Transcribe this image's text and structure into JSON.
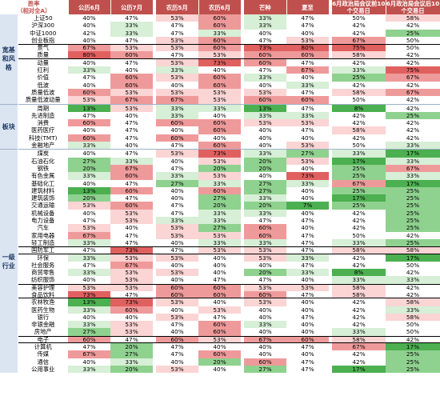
{
  "header": {
    "corner": "胜率\n（相对全A）",
    "columns": [
      "公历6月",
      "公历7月",
      "农历5月",
      "农历6月",
      "芒种",
      "夏至",
      "6月政治局会议前10个交易日",
      "6月政治局会议后10个交易日"
    ]
  },
  "colors": {
    "header_bg": "#c0504d",
    "group_bg": "#dbe5f1",
    "strong_red": "#e06060",
    "red": "#ef9a9a",
    "light_red": "#fbd4d4",
    "neutral": "#ffffff",
    "light_green": "#d6efd6",
    "green": "#8fd18f",
    "strong_green": "#4caf50"
  },
  "groups": [
    {
      "label": "宽基和风格",
      "rows": [
        {
          "name": "上证50",
          "values": [
            "40%",
            "47%",
            "53%",
            "60%",
            "33%",
            "47%",
            "50%",
            "58%"
          ]
        },
        {
          "name": "沪深300",
          "values": [
            "40%",
            "33%",
            "47%",
            "60%",
            "33%",
            "47%",
            "42%",
            "42%"
          ]
        },
        {
          "name": "中证1000",
          "values": [
            "42%",
            "33%",
            "47%",
            "33%",
            "40%",
            "40%",
            "42%",
            "25%"
          ]
        },
        {
          "name": "创业板指",
          "values": [
            "40%",
            "47%",
            "53%",
            "60%",
            "47%",
            "53%",
            "67%",
            "50%"
          ]
        },
        {
          "name": "景气",
          "values": [
            "67%",
            "53%",
            "53%",
            "60%",
            "73%",
            "80%",
            "75%",
            "50%"
          ],
          "box": "top"
        },
        {
          "name": "质量",
          "values": [
            "80%",
            "60%",
            "47%",
            "53%",
            "60%",
            "60%",
            "58%",
            "42%"
          ],
          "box": "bot"
        },
        {
          "name": "动量",
          "values": [
            "40%",
            "47%",
            "53%",
            "73%",
            "60%",
            "47%",
            "42%",
            "42%"
          ]
        },
        {
          "name": "红利",
          "values": [
            "33%",
            "40%",
            "33%",
            "40%",
            "47%",
            "67%",
            "33%",
            "75%"
          ]
        },
        {
          "name": "价值",
          "values": [
            "47%",
            "60%",
            "53%",
            "60%",
            "33%",
            "40%",
            "25%",
            "67%"
          ]
        },
        {
          "name": "低波",
          "values": [
            "40%",
            "60%",
            "40%",
            "60%",
            "40%",
            "33%",
            "42%",
            "42%"
          ]
        },
        {
          "name": "质量低波",
          "values": [
            "60%",
            "53%",
            "53%",
            "53%",
            "53%",
            "47%",
            "58%",
            "67%"
          ]
        },
        {
          "name": "质量低波动量",
          "values": [
            "53%",
            "67%",
            "67%",
            "53%",
            "60%",
            "60%",
            "50%",
            "42%"
          ]
        }
      ]
    },
    {
      "label": "板块",
      "rows": [
        {
          "name": "周期",
          "values": [
            "13%",
            "53%",
            "33%",
            "33%",
            "13%",
            "47%",
            "8%",
            "42%"
          ]
        },
        {
          "name": "先进制造",
          "values": [
            "47%",
            "40%",
            "33%",
            "40%",
            "33%",
            "33%",
            "42%",
            "25%"
          ]
        },
        {
          "name": "消费",
          "values": [
            "60%",
            "47%",
            "60%",
            "60%",
            "53%",
            "53%",
            "42%",
            "42%"
          ]
        },
        {
          "name": "医药医疗",
          "values": [
            "40%",
            "47%",
            "40%",
            "60%",
            "40%",
            "47%",
            "58%",
            "42%"
          ]
        },
        {
          "name": "科技(TMT)",
          "values": [
            "60%",
            "47%",
            "60%",
            "40%",
            "40%",
            "40%",
            "42%",
            "42%"
          ]
        },
        {
          "name": "金融地产",
          "values": [
            "33%",
            "40%",
            "47%",
            "60%",
            "40%",
            "53%",
            "50%",
            "33%"
          ]
        }
      ]
    },
    {
      "label": "一级行业",
      "rows": [
        {
          "name": "煤炭",
          "values": [
            "40%",
            "47%",
            "53%",
            "73%",
            "33%",
            "27%",
            "33%",
            "17%"
          ]
        },
        {
          "name": "石油石化",
          "values": [
            "27%",
            "33%",
            "40%",
            "53%",
            "20%",
            "53%",
            "17%",
            "33%"
          ]
        },
        {
          "name": "钢铁",
          "values": [
            "20%",
            "67%",
            "47%",
            "20%",
            "20%",
            "40%",
            "25%",
            "67%"
          ]
        },
        {
          "name": "有色金属",
          "values": [
            "33%",
            "60%",
            "33%",
            "53%",
            "40%",
            "73%",
            "25%",
            "33%"
          ]
        },
        {
          "name": "基础化工",
          "values": [
            "40%",
            "47%",
            "27%",
            "33%",
            "27%",
            "33%",
            "67%",
            "17%"
          ]
        },
        {
          "name": "建筑材料",
          "values": [
            "13%",
            "60%",
            "40%",
            "60%",
            "27%",
            "40%",
            "25%",
            "25%"
          ]
        },
        {
          "name": "建筑装饰",
          "values": [
            "20%",
            "47%",
            "40%",
            "27%",
            "33%",
            "40%",
            "17%",
            "25%"
          ]
        },
        {
          "name": "交通运输",
          "values": [
            "53%",
            "60%",
            "47%",
            "20%",
            "20%",
            "7%",
            "25%",
            "25%"
          ]
        },
        {
          "name": "机械设备",
          "values": [
            "40%",
            "53%",
            "47%",
            "33%",
            "33%",
            "40%",
            "42%",
            "25%"
          ]
        },
        {
          "name": "电力设备",
          "values": [
            "47%",
            "53%",
            "33%",
            "33%",
            "47%",
            "47%",
            "42%",
            "25%"
          ]
        },
        {
          "name": "汽车",
          "values": [
            "53%",
            "40%",
            "53%",
            "27%",
            "60%",
            "40%",
            "42%",
            "25%"
          ]
        },
        {
          "name": "家用电器",
          "values": [
            "67%",
            "47%",
            "53%",
            "53%",
            "60%",
            "47%",
            "50%",
            "42%"
          ]
        },
        {
          "name": "轻工制造",
          "values": [
            "33%",
            "47%",
            "40%",
            "33%",
            "33%",
            "47%",
            "33%",
            "25%"
          ]
        },
        {
          "name": "国防军工",
          "values": [
            "47%",
            "73%",
            "47%",
            "53%",
            "53%",
            "47%",
            "58%",
            "58%"
          ],
          "box": "both"
        },
        {
          "name": "环保",
          "values": [
            "33%",
            "53%",
            "53%",
            "40%",
            "53%",
            "33%",
            "42%",
            "17%"
          ]
        },
        {
          "name": "社会服务",
          "values": [
            "47%",
            "67%",
            "40%",
            "40%",
            "40%",
            "47%",
            "42%",
            "50%"
          ]
        },
        {
          "name": "商贸零售",
          "values": [
            "33%",
            "53%",
            "53%",
            "40%",
            "20%",
            "33%",
            "8%",
            "42%"
          ]
        },
        {
          "name": "纺织服饰",
          "values": [
            "40%",
            "53%",
            "40%",
            "47%",
            "47%",
            "40%",
            "33%",
            "33%"
          ]
        },
        {
          "name": "美容护理",
          "values": [
            "53%",
            "53%",
            "60%",
            "60%",
            "53%",
            "53%",
            "58%",
            "42%"
          ],
          "box": "top"
        },
        {
          "name": "食品饮料",
          "values": [
            "73%",
            "47%",
            "60%",
            "60%",
            "60%",
            "47%",
            "58%",
            "42%"
          ],
          "box": "bot"
        },
        {
          "name": "农林牧渔",
          "values": [
            "13%",
            "73%",
            "53%",
            "40%",
            "53%",
            "40%",
            "42%",
            "58%"
          ]
        },
        {
          "name": "医药生物",
          "values": [
            "33%",
            "60%",
            "40%",
            "53%",
            "40%",
            "40%",
            "42%",
            "33%"
          ]
        },
        {
          "name": "银行",
          "values": [
            "40%",
            "40%",
            "53%",
            "47%",
            "40%",
            "47%",
            "42%",
            "58%"
          ]
        },
        {
          "name": "非银金融",
          "values": [
            "33%",
            "53%",
            "47%",
            "60%",
            "33%",
            "40%",
            "42%",
            "50%"
          ]
        },
        {
          "name": "房地产",
          "values": [
            "27%",
            "53%",
            "40%",
            "60%",
            "40%",
            "40%",
            "33%",
            "50%"
          ]
        },
        {
          "name": "电子",
          "values": [
            "60%",
            "47%",
            "60%",
            "53%",
            "67%",
            "60%",
            "58%",
            "42%"
          ],
          "box": "both"
        },
        {
          "name": "计算机",
          "values": [
            "47%",
            "20%",
            "47%",
            "40%",
            "40%",
            "47%",
            "67%",
            "17%"
          ]
        },
        {
          "name": "传媒",
          "values": [
            "67%",
            "27%",
            "47%",
            "60%",
            "40%",
            "40%",
            "42%",
            "25%"
          ]
        },
        {
          "name": "通信",
          "values": [
            "40%",
            "33%",
            "40%",
            "20%",
            "60%",
            "47%",
            "42%",
            "25%"
          ]
        },
        {
          "name": "公用事业",
          "values": [
            "33%",
            "20%",
            "53%",
            "40%",
            "27%",
            "47%",
            "17%",
            "25%"
          ]
        }
      ]
    }
  ]
}
